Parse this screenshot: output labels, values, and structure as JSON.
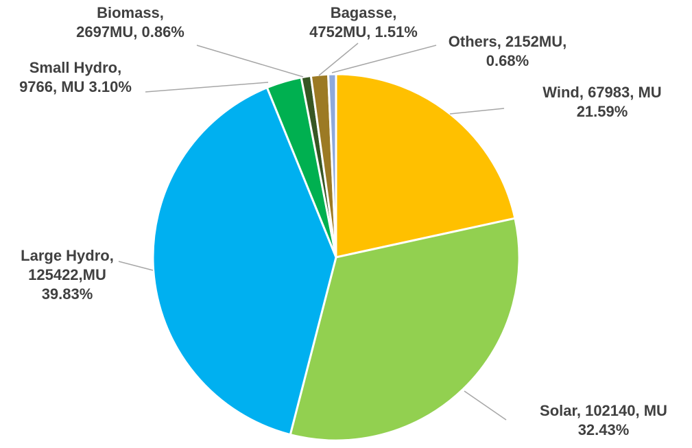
{
  "chart_data": {
    "type": "pie",
    "start_angle_deg": 0,
    "direction": "clockwise",
    "slices": [
      {
        "name": "Wind",
        "value": 67983,
        "percent": 21.59,
        "color": "#FFC000",
        "label_lines": [
          "Wind, 67983, MU",
          "21.59%"
        ]
      },
      {
        "name": "Solar",
        "value": 102140,
        "percent": 32.43,
        "color": "#92D050",
        "label_lines": [
          "Solar, 102140, MU",
          "32.43%"
        ]
      },
      {
        "name": "Large Hydro",
        "value": 125422,
        "percent": 39.83,
        "color": "#00B0F0",
        "label_lines": [
          "Large Hydro,",
          "125422,MU",
          "39.83%"
        ]
      },
      {
        "name": "Small Hydro",
        "value": 9766,
        "percent": 3.1,
        "color": "#00B050",
        "label_lines": [
          "Small Hydro,",
          "9766, MU 3.10%"
        ]
      },
      {
        "name": "Biomass",
        "value": 2697,
        "percent": 0.86,
        "color": "#375623",
        "label_lines": [
          "Biomass,",
          "2697MU, 0.86%"
        ]
      },
      {
        "name": "Bagasse",
        "value": 4752,
        "percent": 1.51,
        "color": "#9C7A24",
        "label_lines": [
          "Bagasse,",
          "4752MU, 1.51%"
        ]
      },
      {
        "name": "Others",
        "value": 2152,
        "percent": 0.68,
        "color": "#8EA9DB",
        "label_lines": [
          "Others, 2152MU,",
          "0.68%"
        ]
      }
    ]
  }
}
